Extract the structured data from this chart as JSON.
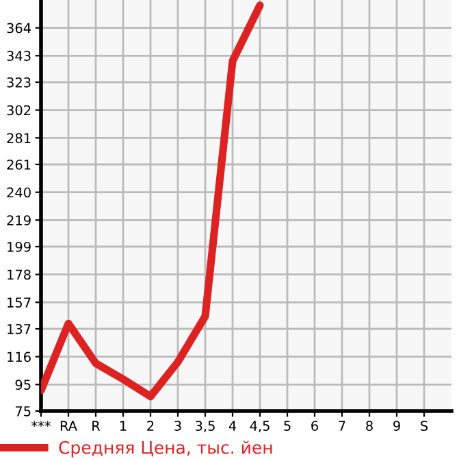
{
  "chart_data": {
    "type": "line",
    "categories": [
      "***",
      "RA",
      "R",
      "1",
      "2",
      "3",
      "3,5",
      "4",
      "4,5",
      "5",
      "6",
      "7",
      "8",
      "9",
      "S"
    ],
    "series": [
      {
        "name": "Средняя Цена, тыс. йен",
        "color": "#dd2222",
        "values": [
          90.5,
          141,
          111,
          99,
          86,
          112,
          146.5,
          339,
          381,
          null,
          null,
          null,
          null,
          null,
          null
        ]
      }
    ],
    "ylim": [
      75,
      385
    ],
    "yticks": [
      75,
      95,
      116,
      137,
      157,
      178,
      199,
      219,
      240,
      261,
      281,
      302,
      323,
      343,
      364
    ],
    "grid": true,
    "legend": "bottom",
    "marker": "none",
    "line_style": "solid"
  }
}
